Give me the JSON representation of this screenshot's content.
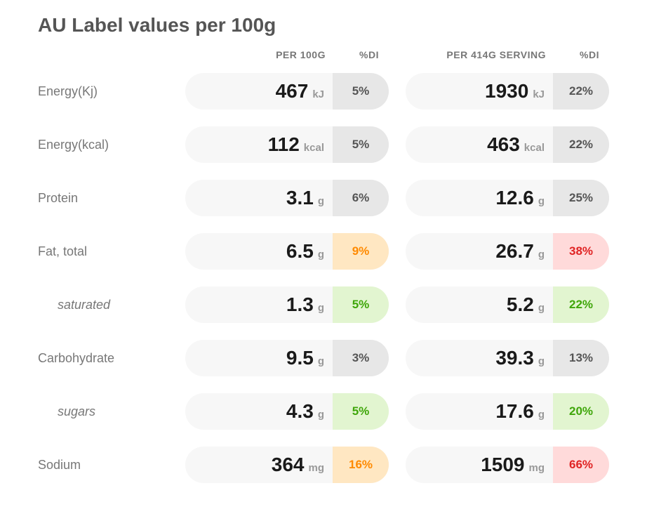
{
  "title": "AU Label values per 100g",
  "headers": {
    "per100": "PER 100G",
    "perServing": "PER 414G SERVING",
    "di": "%DI"
  },
  "di_colors": {
    "gray": {
      "bg": "#e7e7e7",
      "fg": "#555555"
    },
    "orange": {
      "bg": "#ffe7c2",
      "fg": "#ff8a00"
    },
    "green": {
      "bg": "#e2f5d0",
      "fg": "#3fa60a"
    },
    "red": {
      "bg": "#ffdada",
      "fg": "#e02424"
    }
  },
  "rows": [
    {
      "label": "Energy(Kj)",
      "sub": false,
      "per100": {
        "value": "467",
        "unit": "kJ",
        "di": "5%",
        "di_style": "gray"
      },
      "serving": {
        "value": "1930",
        "unit": "kJ",
        "di": "22%",
        "di_style": "gray"
      }
    },
    {
      "label": "Energy(kcal)",
      "sub": false,
      "per100": {
        "value": "112",
        "unit": "kcal",
        "di": "5%",
        "di_style": "gray"
      },
      "serving": {
        "value": "463",
        "unit": "kcal",
        "di": "22%",
        "di_style": "gray"
      }
    },
    {
      "label": "Protein",
      "sub": false,
      "per100": {
        "value": "3.1",
        "unit": "g",
        "di": "6%",
        "di_style": "gray"
      },
      "serving": {
        "value": "12.6",
        "unit": "g",
        "di": "25%",
        "di_style": "gray"
      }
    },
    {
      "label": "Fat, total",
      "sub": false,
      "per100": {
        "value": "6.5",
        "unit": "g",
        "di": "9%",
        "di_style": "orange"
      },
      "serving": {
        "value": "26.7",
        "unit": "g",
        "di": "38%",
        "di_style": "red"
      }
    },
    {
      "label": "saturated",
      "sub": true,
      "per100": {
        "value": "1.3",
        "unit": "g",
        "di": "5%",
        "di_style": "green"
      },
      "serving": {
        "value": "5.2",
        "unit": "g",
        "di": "22%",
        "di_style": "green"
      }
    },
    {
      "label": "Carbohydrate",
      "sub": false,
      "per100": {
        "value": "9.5",
        "unit": "g",
        "di": "3%",
        "di_style": "gray"
      },
      "serving": {
        "value": "39.3",
        "unit": "g",
        "di": "13%",
        "di_style": "gray"
      }
    },
    {
      "label": "sugars",
      "sub": true,
      "per100": {
        "value": "4.3",
        "unit": "g",
        "di": "5%",
        "di_style": "green"
      },
      "serving": {
        "value": "17.6",
        "unit": "g",
        "di": "20%",
        "di_style": "green"
      }
    },
    {
      "label": "Sodium",
      "sub": false,
      "per100": {
        "value": "364",
        "unit": "mg",
        "di": "16%",
        "di_style": "orange"
      },
      "serving": {
        "value": "1509",
        "unit": "mg",
        "di": "66%",
        "di_style": "red"
      }
    }
  ]
}
